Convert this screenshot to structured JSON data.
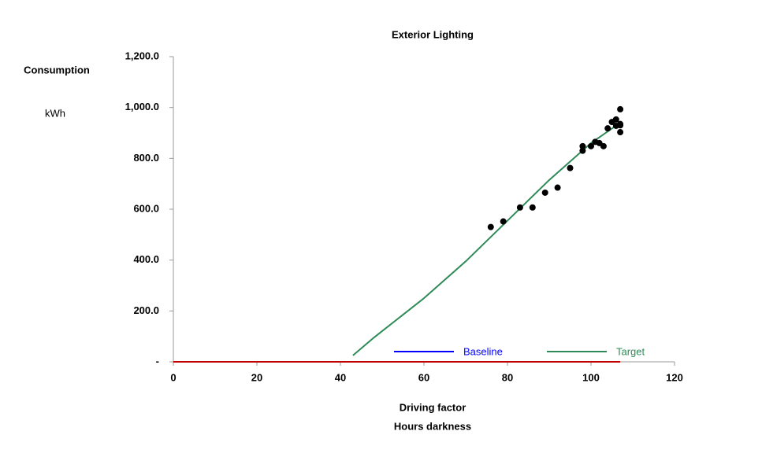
{
  "chart_data": {
    "type": "scatter",
    "title": "Exterior Lighting",
    "y_label": [
      "Consumption",
      "kWh"
    ],
    "x_label": [
      "Driving factor",
      "Hours darkness"
    ],
    "xlim": [
      0,
      120
    ],
    "xticks": [
      0,
      20,
      40,
      60,
      80,
      100,
      120
    ],
    "ylim": [
      0,
      1200
    ],
    "yticks": [
      {
        "value": 0,
        "label": "-"
      },
      {
        "value": 200,
        "label": "200.0"
      },
      {
        "value": 400,
        "label": "400.0"
      },
      {
        "value": 600,
        "label": "600.0"
      },
      {
        "value": 800,
        "label": "800.0"
      },
      {
        "value": 1000,
        "label": "1,000.0"
      },
      {
        "value": 1200,
        "label": "1,200.0"
      }
    ],
    "points": {
      "color": "#000000",
      "x": [
        76,
        79,
        83,
        86,
        89,
        92,
        95,
        98,
        98,
        100,
        101,
        102,
        103,
        104,
        105,
        106,
        106,
        107,
        107,
        107,
        107
      ],
      "y": [
        530,
        552,
        607,
        607,
        665,
        685,
        762,
        830,
        848,
        848,
        865,
        860,
        848,
        918,
        943,
        953,
        928,
        993,
        935,
        930,
        903
      ]
    },
    "series": [
      {
        "name": "Baseline",
        "color": "#0000ff",
        "x": [],
        "values": []
      },
      {
        "name": "Target",
        "color": "#2e8b57",
        "x": [
          43,
          48,
          60,
          70,
          80,
          90,
          100,
          107
        ],
        "values": [
          25,
          95,
          250,
          395,
          555,
          715,
          860,
          940
        ]
      },
      {
        "color": "#c00000",
        "x": [
          0,
          107
        ],
        "values": [
          0,
          0
        ]
      }
    ]
  }
}
